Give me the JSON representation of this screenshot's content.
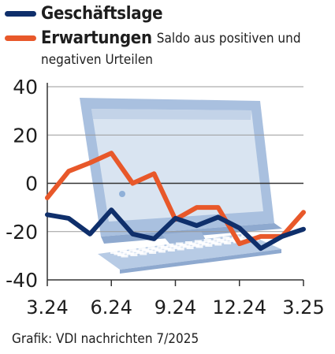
{
  "chart_data": {
    "type": "line",
    "x_tick_labels": [
      "3.24",
      "6.24",
      "9.24",
      "12.24",
      "3.25"
    ],
    "y_ticks": [
      40,
      20,
      0,
      -20,
      -40
    ],
    "ylim": [
      -40,
      40
    ],
    "grid": true,
    "legend_position": "top-left",
    "series": [
      {
        "name": "Geschäftslage",
        "color": "#0f2f6b",
        "values": [
          -13,
          -14.5,
          -21,
          -11,
          -21,
          -23,
          -14.5,
          -17.5,
          -14,
          -18.5,
          -27,
          -22,
          -19
        ]
      },
      {
        "name": "Erwartungen",
        "note": "Saldo aus positiven und negativen Urteilen",
        "color": "#e8582a",
        "values": [
          -6,
          5,
          8.5,
          12.5,
          0,
          4,
          -15,
          -10,
          -10,
          -25,
          -22,
          -22,
          -12
        ]
      }
    ]
  },
  "legend_note_line1": "Saldo aus positiven und",
  "legend_note_line2": "negativen Urteilen",
  "source": "Grafik: VDI nachrichten 7/2025"
}
